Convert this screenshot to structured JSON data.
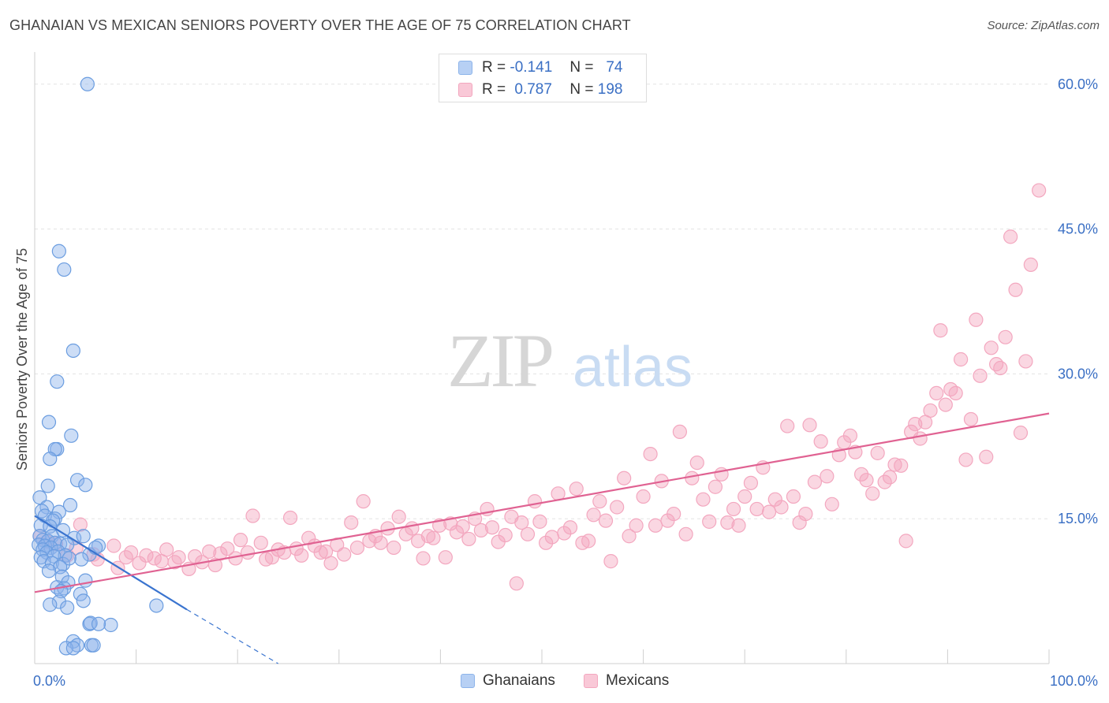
{
  "title": "GHANAIAN VS MEXICAN SENIORS POVERTY OVER THE AGE OF 75 CORRELATION CHART",
  "source": "Source: ZipAtlas.com",
  "watermark": {
    "zip": "ZIP",
    "atlas": "atlas"
  },
  "colors": {
    "blue": "#8db4ea",
    "blue_line": "#3a74cf",
    "pink": "#f3a7bf",
    "pink_line": "#e06292",
    "axis_label": "#3a6fc4",
    "grid": "#e3e3e3"
  },
  "legend": {
    "rows": [
      {
        "r_label": "R =",
        "r_value": "-0.141",
        "n_label": "N =",
        "n_value": "74"
      },
      {
        "r_label": "R =",
        "r_value": "0.787",
        "n_label": "N =",
        "n_value": "198"
      }
    ]
  },
  "bottom_legend": {
    "ghanaians": "Ghanaians",
    "mexicans": "Mexicans"
  },
  "chart_data": {
    "type": "scatter",
    "xlabel": "",
    "ylabel": "Seniors Poverty Over the Age of 75",
    "xlim": [
      0,
      100
    ],
    "ylim": [
      0,
      63
    ],
    "x_tick_labels": [
      "0.0%",
      "100.0%"
    ],
    "y_ticks": [
      15,
      30,
      45,
      60
    ],
    "y_tick_labels": [
      "15.0%",
      "30.0%",
      "45.0%",
      "60.0%"
    ],
    "grid": true,
    "series": [
      {
        "name": "Ghanaians",
        "trend": {
          "x0": 0,
          "y0": 15.3,
          "x1": 15,
          "y1": 5.6,
          "dash_to_x": 24,
          "dash_to_y": 0
        },
        "points": [
          [
            5.2,
            60
          ],
          [
            2.4,
            42.7
          ],
          [
            2.9,
            40.8
          ],
          [
            3.8,
            32.4
          ],
          [
            2.2,
            29.2
          ],
          [
            1.4,
            25
          ],
          [
            3.6,
            23.6
          ],
          [
            2.2,
            22.2
          ],
          [
            2,
            22.2
          ],
          [
            1.5,
            21.2
          ],
          [
            4.2,
            19
          ],
          [
            5,
            18.5
          ],
          [
            1.3,
            18.4
          ],
          [
            0.5,
            17.2
          ],
          [
            1.2,
            16.2
          ],
          [
            3.5,
            16.4
          ],
          [
            0.7,
            15.8
          ],
          [
            2.4,
            15.7
          ],
          [
            1,
            15.3
          ],
          [
            2,
            15
          ],
          [
            1.8,
            14.8
          ],
          [
            0.6,
            14.3
          ],
          [
            1.5,
            14.2
          ],
          [
            2.8,
            13.8
          ],
          [
            0.5,
            13.2
          ],
          [
            1.7,
            13.2
          ],
          [
            3.9,
            13
          ],
          [
            4.8,
            13.2
          ],
          [
            0.8,
            12.8
          ],
          [
            1.3,
            12.7
          ],
          [
            2,
            12.5
          ],
          [
            0.4,
            12.3
          ],
          [
            1,
            12.2
          ],
          [
            2.5,
            12.4
          ],
          [
            3.2,
            12.3
          ],
          [
            1.6,
            12
          ],
          [
            0.8,
            11.8
          ],
          [
            6.3,
            12.2
          ],
          [
            1.2,
            11.5
          ],
          [
            2.3,
            11.6
          ],
          [
            3,
            11.2
          ],
          [
            0.6,
            11
          ],
          [
            1.9,
            11.1
          ],
          [
            5.4,
            11.3
          ],
          [
            0.9,
            10.6
          ],
          [
            1.7,
            10.4
          ],
          [
            2.8,
            10.3
          ],
          [
            6,
            12
          ],
          [
            4.6,
            10.8
          ],
          [
            3.4,
            10.9
          ],
          [
            2.5,
            10
          ],
          [
            1.4,
            9.6
          ],
          [
            2.7,
            9
          ],
          [
            3.3,
            8.4
          ],
          [
            5,
            8.6
          ],
          [
            2.2,
            7.9
          ],
          [
            2.9,
            7.8
          ],
          [
            2.6,
            7.5
          ],
          [
            4.5,
            7.2
          ],
          [
            2.4,
            6.4
          ],
          [
            4.8,
            6.5
          ],
          [
            1.5,
            6.1
          ],
          [
            3.2,
            5.8
          ],
          [
            12,
            6
          ],
          [
            5.4,
            4.1
          ],
          [
            5.5,
            4.2
          ],
          [
            7.5,
            4
          ],
          [
            6.3,
            4.1
          ],
          [
            3.8,
            2.3
          ],
          [
            4.2,
            1.9
          ],
          [
            5.6,
            1.9
          ],
          [
            5.8,
            1.9
          ],
          [
            3.1,
            1.6
          ],
          [
            3.8,
            1.6
          ]
        ]
      },
      {
        "name": "Mexicans",
        "trend": {
          "x0": 0,
          "y0": 7.4,
          "x1": 100,
          "y1": 25.9
        },
        "points": [
          [
            0.5,
            13.2
          ],
          [
            1.2,
            12.6
          ],
          [
            2.1,
            12.4
          ],
          [
            3.2,
            11.2
          ],
          [
            4.1,
            12
          ],
          [
            4.5,
            14.4
          ],
          [
            5.8,
            11.3
          ],
          [
            6.2,
            10.8
          ],
          [
            7.8,
            12.2
          ],
          [
            8.2,
            9.9
          ],
          [
            9,
            11
          ],
          [
            9.5,
            11.5
          ],
          [
            10.3,
            10.4
          ],
          [
            11,
            11.2
          ],
          [
            11.8,
            10.9
          ],
          [
            12.5,
            10.6
          ],
          [
            13,
            11.8
          ],
          [
            13.8,
            10.5
          ],
          [
            14.2,
            11
          ],
          [
            15.2,
            9.8
          ],
          [
            15.8,
            11.1
          ],
          [
            16.5,
            10.5
          ],
          [
            17.2,
            11.6
          ],
          [
            17.8,
            10.2
          ],
          [
            18.3,
            11.4
          ],
          [
            19,
            11.9
          ],
          [
            19.8,
            10.9
          ],
          [
            20.3,
            12.8
          ],
          [
            21,
            11.5
          ],
          [
            21.5,
            15.3
          ],
          [
            22.3,
            12.5
          ],
          [
            22.8,
            10.8
          ],
          [
            23.4,
            11
          ],
          [
            24,
            11.8
          ],
          [
            24.6,
            11.5
          ],
          [
            25.2,
            15.1
          ],
          [
            25.8,
            11.9
          ],
          [
            26.3,
            11.2
          ],
          [
            27,
            13
          ],
          [
            27.6,
            12.2
          ],
          [
            28.2,
            11.5
          ],
          [
            28.7,
            11.6
          ],
          [
            29.2,
            10.4
          ],
          [
            29.8,
            12.3
          ],
          [
            30.5,
            11.3
          ],
          [
            31.2,
            14.6
          ],
          [
            31.8,
            12
          ],
          [
            32.4,
            16.8
          ],
          [
            33,
            12.7
          ],
          [
            33.6,
            13.2
          ],
          [
            34.1,
            12.5
          ],
          [
            34.8,
            14
          ],
          [
            35.4,
            12
          ],
          [
            35.9,
            15.2
          ],
          [
            36.6,
            13.4
          ],
          [
            37.2,
            14
          ],
          [
            37.8,
            12.7
          ],
          [
            38.3,
            10.9
          ],
          [
            38.8,
            13.2
          ],
          [
            39.3,
            13
          ],
          [
            39.9,
            14.3
          ],
          [
            40.5,
            11
          ],
          [
            41,
            14.5
          ],
          [
            41.6,
            13.6
          ],
          [
            42.2,
            14.2
          ],
          [
            42.8,
            12.9
          ],
          [
            43.4,
            15
          ],
          [
            44,
            13.8
          ],
          [
            44.6,
            16
          ],
          [
            45.1,
            14.1
          ],
          [
            45.7,
            12.6
          ],
          [
            46.4,
            13.3
          ],
          [
            47,
            15.2
          ],
          [
            47.5,
            8.3
          ],
          [
            48,
            14.6
          ],
          [
            48.6,
            13.4
          ],
          [
            49.3,
            16.8
          ],
          [
            49.8,
            14.7
          ],
          [
            50.4,
            12.5
          ],
          [
            51,
            13.1
          ],
          [
            51.6,
            17.6
          ],
          [
            52.2,
            13.5
          ],
          [
            52.8,
            14.1
          ],
          [
            53.4,
            18.1
          ],
          [
            54,
            12.5
          ],
          [
            54.6,
            12.7
          ],
          [
            55.1,
            15.4
          ],
          [
            55.7,
            16.8
          ],
          [
            56.3,
            14.8
          ],
          [
            56.8,
            10.6
          ],
          [
            57.4,
            16.2
          ],
          [
            58.1,
            19.2
          ],
          [
            58.6,
            13.2
          ],
          [
            59.3,
            14.3
          ],
          [
            60,
            17.3
          ],
          [
            60.7,
            21.7
          ],
          [
            61.2,
            14.3
          ],
          [
            61.8,
            18.9
          ],
          [
            62.4,
            14.8
          ],
          [
            63,
            15.5
          ],
          [
            63.6,
            24
          ],
          [
            64.2,
            13.4
          ],
          [
            64.8,
            19.2
          ],
          [
            65.3,
            20.8
          ],
          [
            65.9,
            17
          ],
          [
            66.5,
            14.7
          ],
          [
            67.1,
            18.3
          ],
          [
            67.7,
            19.6
          ],
          [
            68.3,
            14.6
          ],
          [
            68.9,
            16
          ],
          [
            69.4,
            14.3
          ],
          [
            70,
            17.3
          ],
          [
            70.6,
            18.7
          ],
          [
            71.2,
            16
          ],
          [
            71.8,
            20.3
          ],
          [
            72.4,
            15.7
          ],
          [
            73,
            17
          ],
          [
            73.6,
            16.2
          ],
          [
            74.2,
            24.6
          ],
          [
            74.8,
            17.3
          ],
          [
            75.4,
            14.6
          ],
          [
            76,
            15.5
          ],
          [
            76.4,
            24.7
          ],
          [
            76.9,
            18.8
          ],
          [
            77.5,
            23
          ],
          [
            78.1,
            19.4
          ],
          [
            78.6,
            16.5
          ],
          [
            79.3,
            21.6
          ],
          [
            79.8,
            22.9
          ],
          [
            80.4,
            23.6
          ],
          [
            80.9,
            21.9
          ],
          [
            81.5,
            19.6
          ],
          [
            82,
            19
          ],
          [
            82.6,
            17.6
          ],
          [
            83.1,
            21.8
          ],
          [
            83.8,
            18.8
          ],
          [
            84.3,
            19.3
          ],
          [
            84.8,
            20.6
          ],
          [
            85.4,
            20.5
          ],
          [
            85.9,
            12.7
          ],
          [
            86.4,
            24
          ],
          [
            86.8,
            24.8
          ],
          [
            87.3,
            23.3
          ],
          [
            87.8,
            25
          ],
          [
            88.3,
            26.2
          ],
          [
            88.9,
            28
          ],
          [
            89.3,
            34.5
          ],
          [
            89.8,
            26.8
          ],
          [
            90.3,
            28.4
          ],
          [
            90.8,
            28
          ],
          [
            91.3,
            31.5
          ],
          [
            91.8,
            21.1
          ],
          [
            92.3,
            25.3
          ],
          [
            92.8,
            35.6
          ],
          [
            93.2,
            29.8
          ],
          [
            93.8,
            21.4
          ],
          [
            94.3,
            32.7
          ],
          [
            94.8,
            31
          ],
          [
            95.2,
            30.6
          ],
          [
            95.7,
            33.8
          ],
          [
            96.2,
            44.2
          ],
          [
            96.7,
            38.7
          ],
          [
            97.2,
            23.9
          ],
          [
            97.7,
            31.3
          ],
          [
            98.2,
            41.3
          ],
          [
            99,
            49
          ]
        ]
      }
    ]
  }
}
